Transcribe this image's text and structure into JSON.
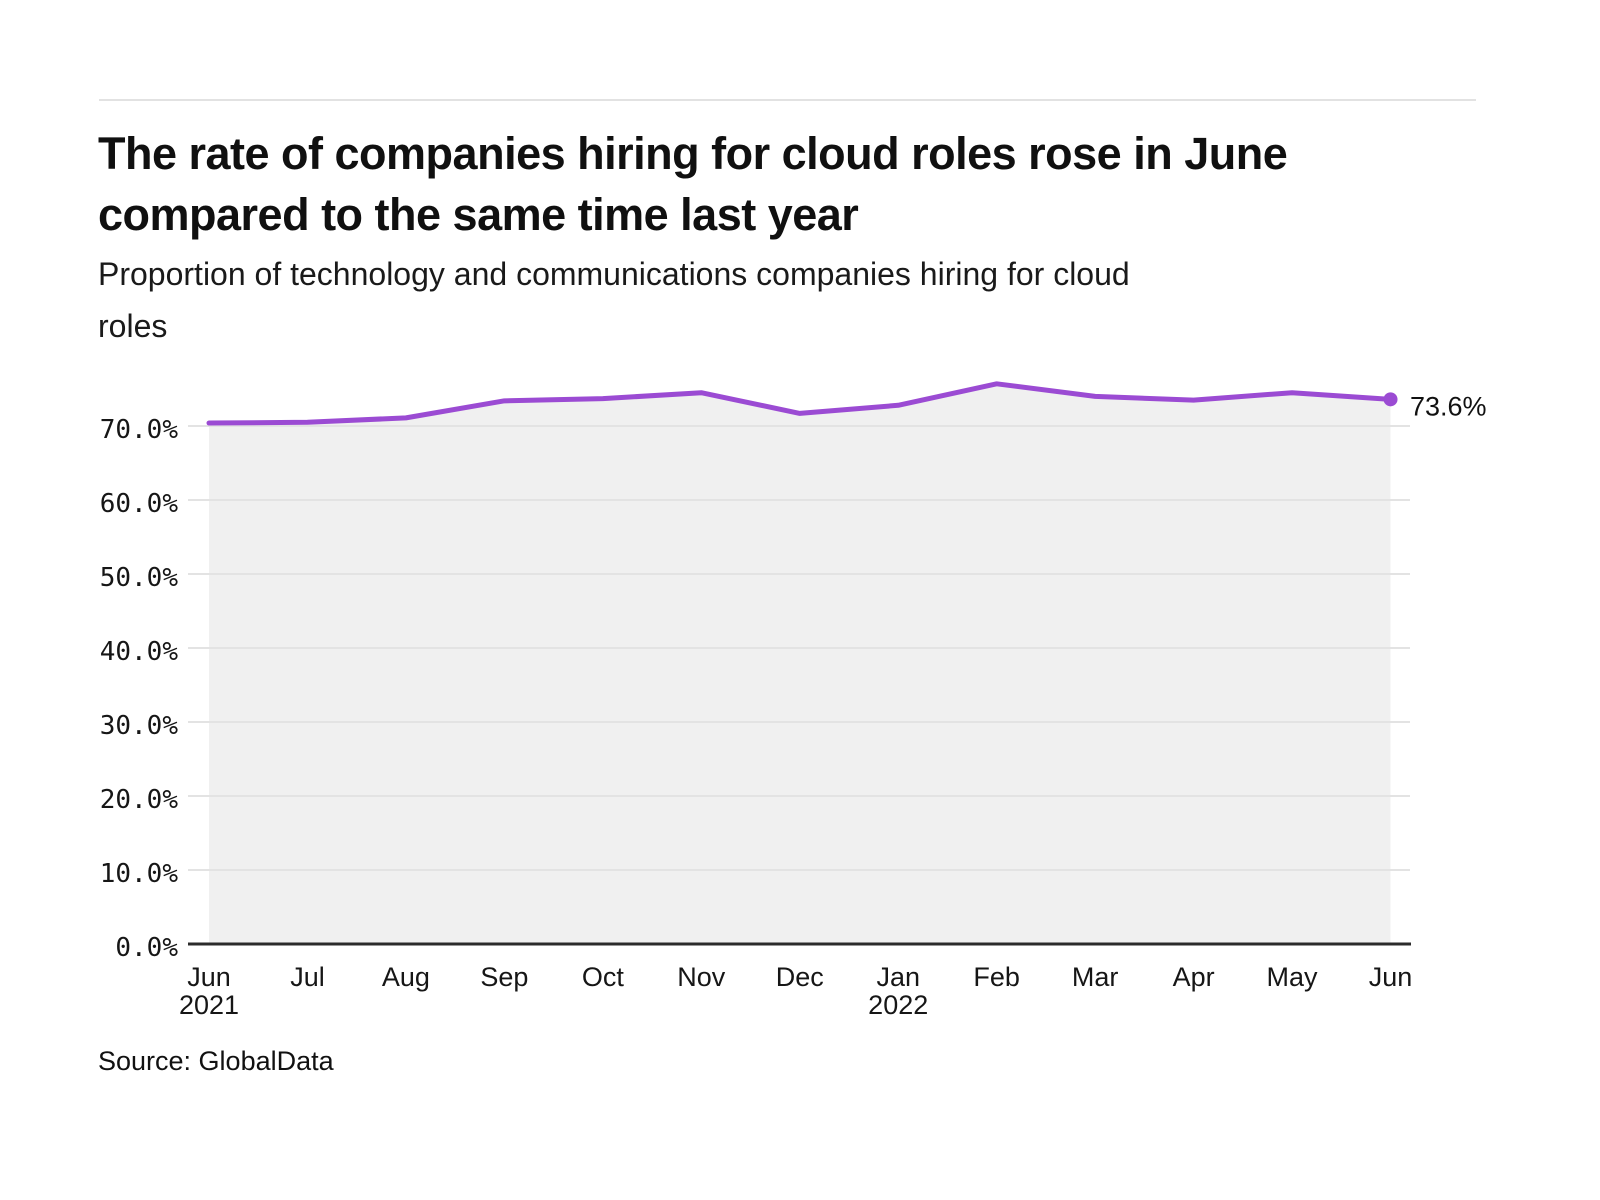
{
  "header": {
    "title_lines": [
      "The rate of companies hiring for cloud roles rose in June",
      "compared to the same time last year"
    ],
    "subtitle_lines": [
      "Proportion of technology and communications companies hiring for cloud",
      "roles"
    ]
  },
  "source": "Source: GlobalData",
  "colors": {
    "line": "#9b4bd3",
    "fill": "#f0f0f0",
    "grid": "#e3e3e3",
    "axis": "#2b2b2b",
    "text": "#161616"
  },
  "chart_data": {
    "type": "line",
    "title": "The rate of companies hiring for cloud roles rose in June compared to the same time last year",
    "subtitle": "Proportion of technology and communications companies hiring for cloud roles",
    "categories": [
      "Jun",
      "Jul",
      "Aug",
      "Sep",
      "Oct",
      "Nov",
      "Dec",
      "Jan",
      "Feb",
      "Mar",
      "Apr",
      "May",
      "Jun"
    ],
    "year_labels": [
      {
        "index": 0,
        "label": "2021"
      },
      {
        "index": 7,
        "label": "2022"
      }
    ],
    "series": [
      {
        "name": "Proportion of technology and communications companies hiring for cloud roles",
        "values": [
          70.4,
          70.5,
          71.1,
          73.4,
          73.7,
          74.5,
          71.7,
          72.8,
          75.7,
          74.0,
          73.5,
          74.5,
          73.6
        ]
      }
    ],
    "end_label": "73.6%",
    "yticks": [
      0,
      10,
      20,
      30,
      40,
      50,
      60,
      70
    ],
    "ytick_labels": [
      "0.0%",
      "10.0%",
      "20.0%",
      "30.0%",
      "40.0%",
      "50.0%",
      "60.0%",
      "70.0%"
    ],
    "ylim": [
      0,
      78.5
    ],
    "grid": true,
    "legend": "none",
    "xlabel": "",
    "ylabel": ""
  }
}
